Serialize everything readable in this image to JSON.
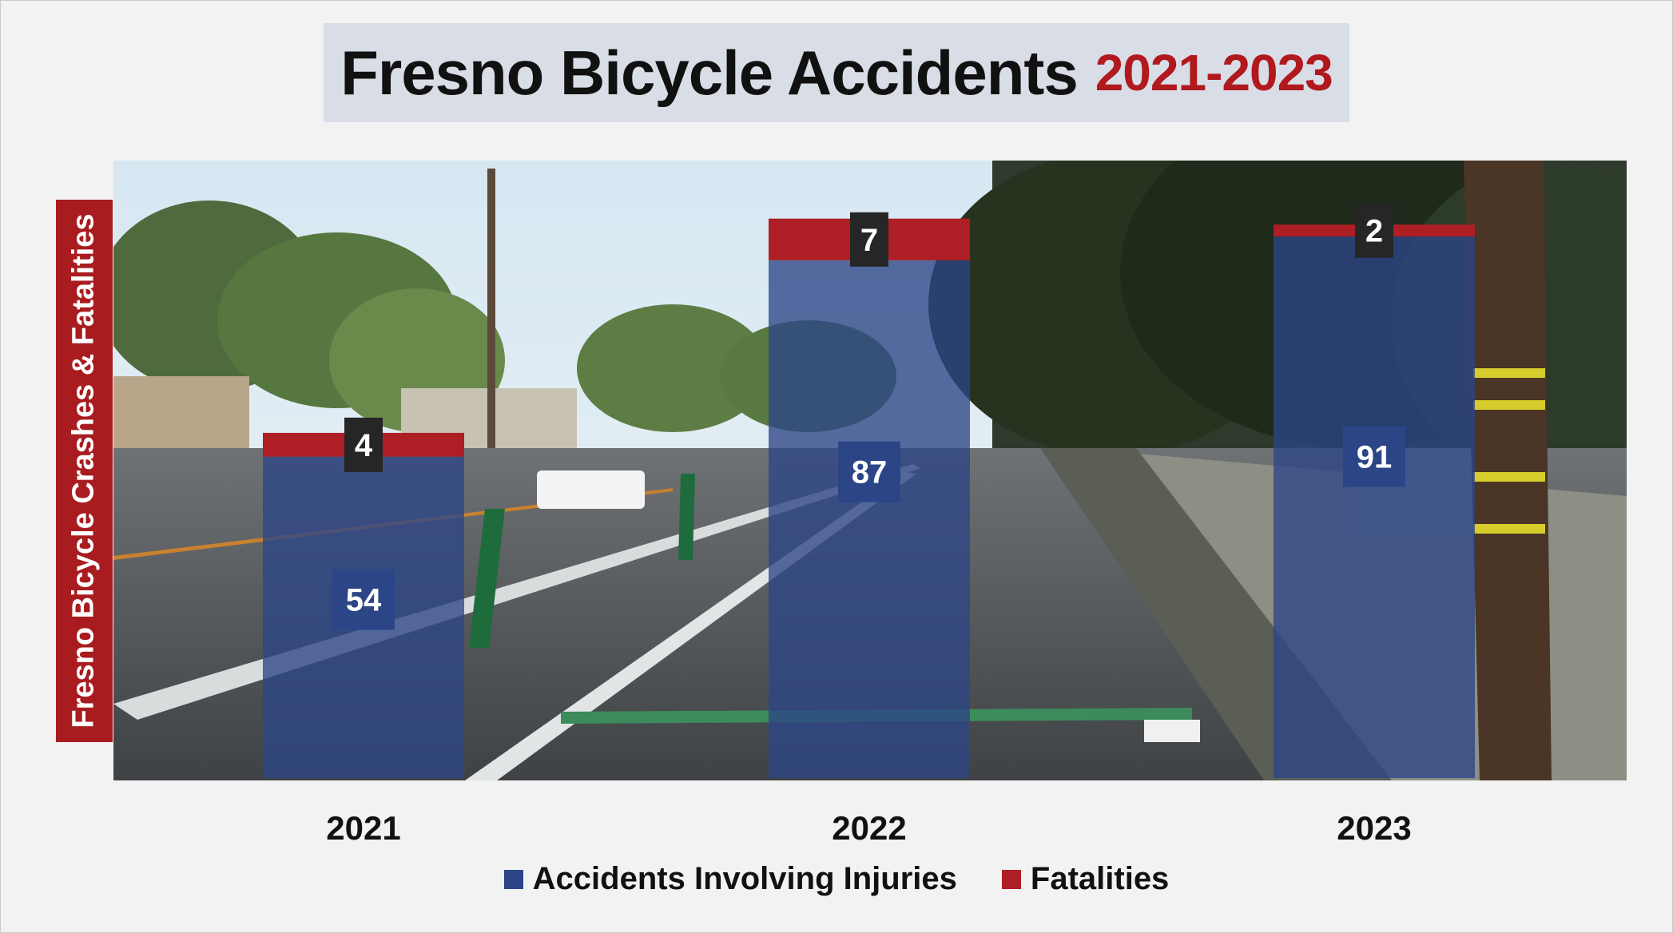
{
  "title": {
    "main": "Fresno Bicycle Accidents",
    "years": "2021-2023"
  },
  "chart_data": {
    "type": "bar",
    "stacked": true,
    "categories": [
      "2021",
      "2022",
      "2023"
    ],
    "series": [
      {
        "name": "Accidents Involving Injuries",
        "values": [
          54,
          87,
          91
        ],
        "color": "#2b4587"
      },
      {
        "name": "Fatalities",
        "values": [
          4,
          7,
          2
        ],
        "color": "#ad1f24"
      }
    ],
    "title": "Fresno Bicycle Accidents 2021-2023",
    "xlabel": "",
    "ylabel": "Fresno Bicycle Crashes & Fatalities",
    "ylim": [
      0,
      100
    ],
    "grid": false,
    "legend": "bottom",
    "background": "street-photo-bike-lane"
  },
  "colors": {
    "title_accent": "#b0191e",
    "ylabel_bg": "#a81c1f",
    "injuries": "#2b4587",
    "fatalities": "#ad1f24",
    "label_box_injuries": "#2b4587",
    "label_box_fatalities": "#262626"
  }
}
